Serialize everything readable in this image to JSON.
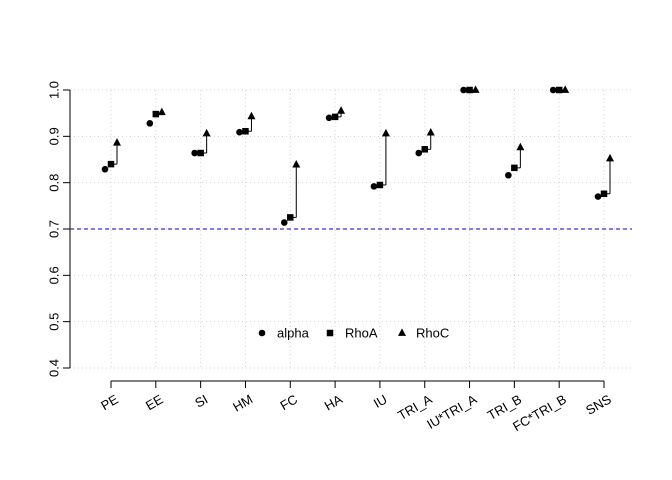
{
  "chart_data": {
    "type": "scatter",
    "title": "",
    "xlabel": "",
    "ylabel": "",
    "categories": [
      "PE",
      "EE",
      "SI",
      "HM",
      "FC",
      "HA",
      "IU",
      "TRI_A",
      "IU*TRI_A",
      "TRI_B",
      "FC*TRI_B",
      "SNS"
    ],
    "series": [
      {
        "name": "alpha",
        "marker": "circle",
        "values": [
          0.829,
          0.928,
          0.864,
          0.909,
          0.714,
          0.94,
          0.792,
          0.864,
          1.0,
          0.816,
          1.0,
          0.77
        ]
      },
      {
        "name": "RhoA",
        "marker": "square",
        "values": [
          0.84,
          0.948,
          0.864,
          0.911,
          0.725,
          0.942,
          0.795,
          0.872,
          1.0,
          0.832,
          1.0,
          0.776
        ]
      },
      {
        "name": "RhoC",
        "marker": "triangle",
        "values": [
          0.886,
          0.952,
          0.906,
          0.943,
          0.839,
          0.955,
          0.906,
          0.908,
          1.0,
          0.876,
          1.0,
          0.852
        ]
      }
    ],
    "reference_line": {
      "y": 0.7,
      "color": "#0000cc",
      "style": "dashed"
    },
    "ylim": [
      0.4,
      1.0
    ],
    "yticks": [
      "0.4",
      "0.5",
      "0.6",
      "0.7",
      "0.8",
      "0.9",
      "1.0"
    ],
    "grid": true,
    "legend_position": "bottom-center",
    "colors": {
      "marks": "#000000",
      "grid": "#d3d3d3",
      "reference": "#0000cc"
    }
  }
}
